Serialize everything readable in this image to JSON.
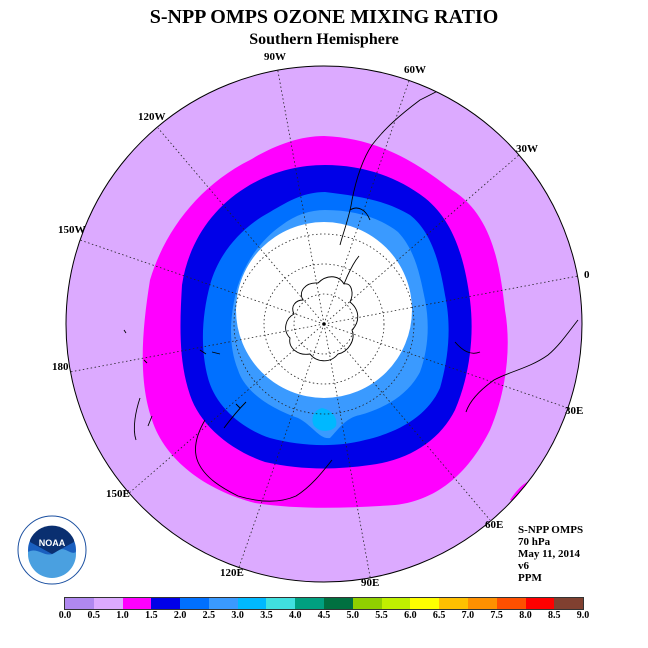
{
  "title": "S-NPP OMPS OZONE MIXING RATIO",
  "subtitle": "Southern Hemisphere",
  "longitude_labels": {
    "w90": "90W",
    "w60": "60W",
    "w30": "30W",
    "w120": "120W",
    "w150": "150W",
    "e0": "0",
    "d180": "180",
    "e30": "30E",
    "e60": "60E",
    "e90": "90E",
    "e120": "120E",
    "e150": "150E"
  },
  "info": {
    "instrument": "S-NPP OMPS",
    "level": "70 hPa",
    "date": "May 11, 2014",
    "version": "v6",
    "units": "PPM"
  },
  "logo": {
    "text": "NOAA",
    "ring_text": "NATIONAL OCEANIC AND ATMOSPHERIC ADMINISTRATION · U.S. DEPARTMENT OF COMMERCE"
  },
  "colorbar": {
    "colors": [
      "#b088f0",
      "#dcaaff",
      "#ff00ff",
      "#0000e8",
      "#0070ff",
      "#3a9aff",
      "#00b8ff",
      "#40e0e0",
      "#00a080",
      "#007040",
      "#90d000",
      "#c0f000",
      "#ffff00",
      "#ffc000",
      "#ff9000",
      "#ff5000",
      "#ff0000",
      "#804030"
    ],
    "ticks": [
      "0.0",
      "0.5",
      "1.0",
      "1.5",
      "2.0",
      "2.5",
      "3.0",
      "3.5",
      "4.0",
      "4.5",
      "5.0",
      "5.5",
      "6.0",
      "6.5",
      "7.0",
      "7.5",
      "8.0",
      "8.5",
      "9.0"
    ]
  },
  "map_colors": {
    "outer": "#dcaaff",
    "ring_1_0": "#ff00ff",
    "ring_1_5": "#0000e8",
    "ring_2_0": "#0070ff",
    "ring_2_5": "#3a9aff",
    "no_data": "#ffffff"
  }
}
